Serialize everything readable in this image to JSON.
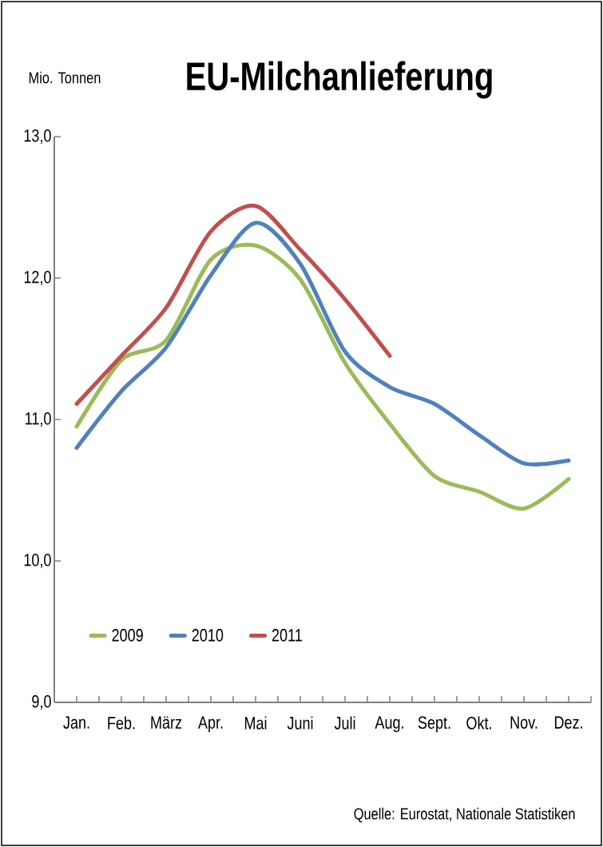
{
  "chart_data": {
    "type": "line",
    "title": "EU-Milchanlieferung",
    "ylabel": "Mio. Tonnen",
    "categories": [
      "Jan.",
      "Feb.",
      "März",
      "Apr.",
      "Mai",
      "Juni",
      "Juli",
      "Aug.",
      "Sept.",
      "Okt.",
      "Nov.",
      "Dez."
    ],
    "series": [
      {
        "name": "2009",
        "color": "#9bbb59",
        "values": [
          10.95,
          11.42,
          11.56,
          12.13,
          12.23,
          11.99,
          11.4,
          10.97,
          10.6,
          10.49,
          10.37,
          10.58
        ]
      },
      {
        "name": "2010",
        "color": "#4f81bd",
        "values": [
          10.8,
          11.2,
          11.51,
          12.02,
          12.39,
          12.1,
          11.48,
          11.23,
          11.11,
          10.89,
          10.69,
          10.71
        ]
      },
      {
        "name": "2011",
        "color": "#c0504d",
        "values": [
          11.11,
          11.45,
          11.79,
          12.33,
          12.51,
          12.2,
          11.85,
          11.45,
          null,
          null,
          null,
          null
        ]
      }
    ],
    "ylim": [
      9,
      13
    ],
    "yticks": [
      {
        "value": 9,
        "label": "9,0"
      },
      {
        "value": 10,
        "label": "10,0"
      },
      {
        "value": 11,
        "label": "11,0"
      },
      {
        "value": 12,
        "label": "12,0"
      },
      {
        "value": 13,
        "label": "13,0"
      }
    ],
    "legend": "bottom left",
    "marker": "none",
    "line_style": "solid",
    "annotations": [
      "Quelle: Eurostat,  Nationale Statistiken"
    ]
  }
}
